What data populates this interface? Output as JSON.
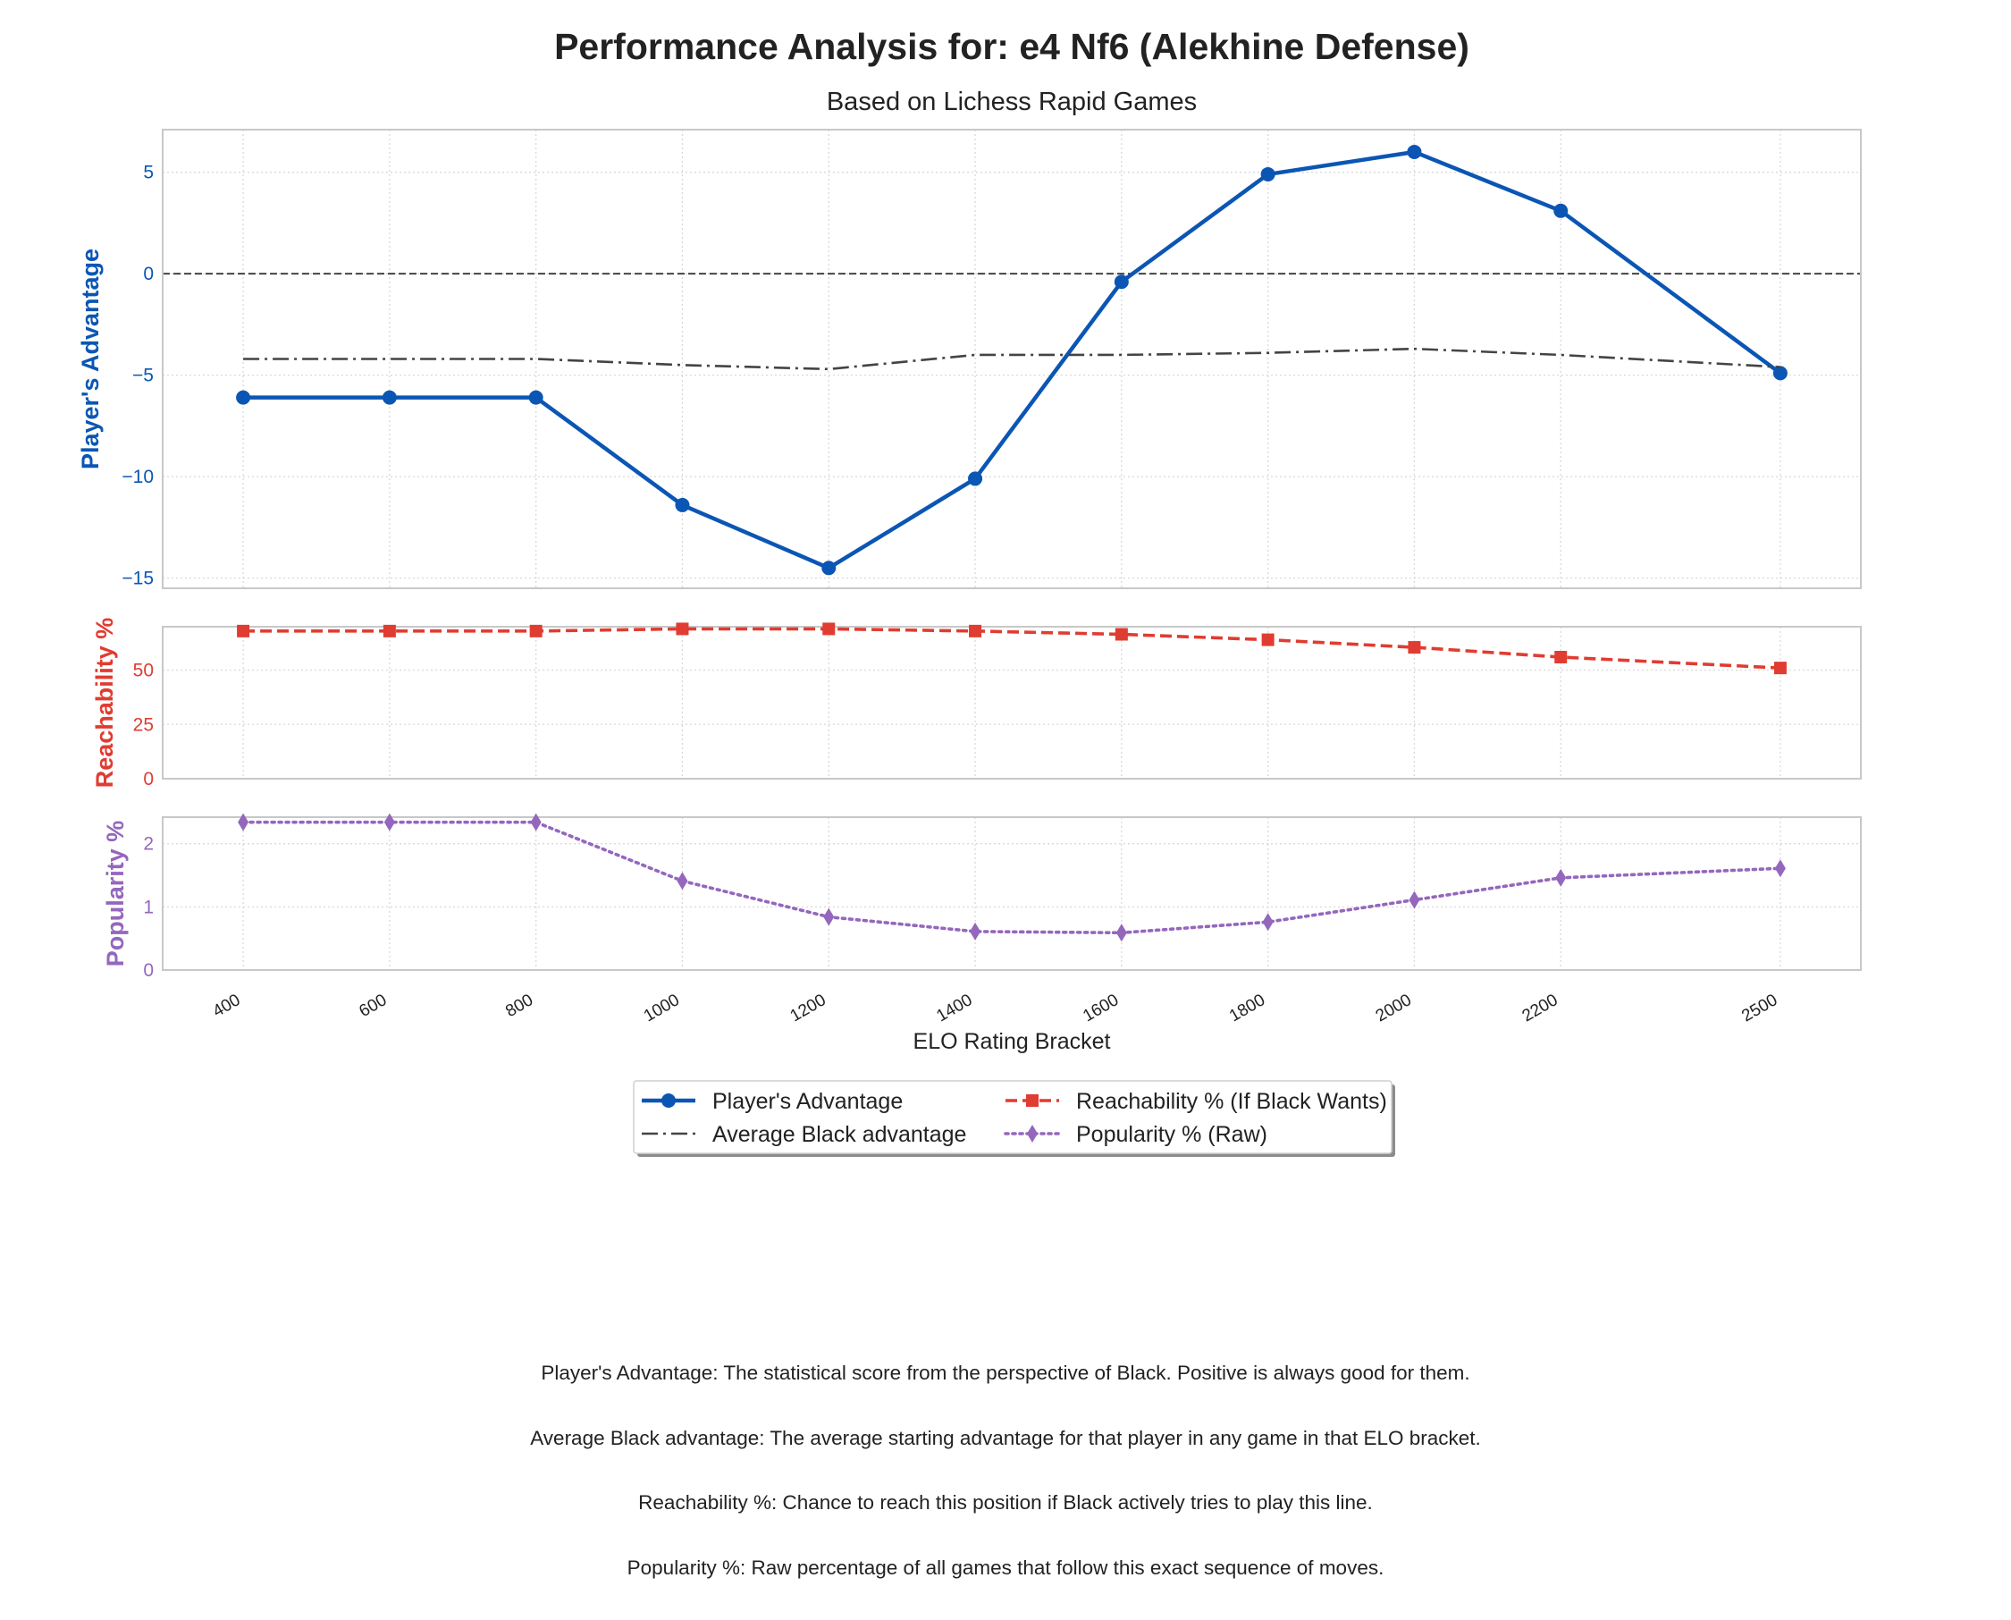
{
  "chart_data": {
    "type": "line",
    "title": "Performance Analysis for: e4 Nf6 (Alekhine Defense)",
    "subtitle": "Based on Lichess Rapid Games",
    "xlabel": "ELO Rating Bracket",
    "x": [
      400,
      600,
      800,
      1000,
      1200,
      1400,
      1600,
      1800,
      2000,
      2200,
      2500
    ],
    "xlim": [
      290,
      2610
    ],
    "grid": true,
    "legend_placement": "bottom-center",
    "panels": [
      {
        "ylabel": "Player's Advantage",
        "ylabel_color": "#0b56b4",
        "ylim": [
          -15.5,
          7.1
        ],
        "yticks": [
          5,
          0,
          -5,
          -10,
          -15
        ],
        "ytick_labels": [
          "5",
          "0",
          "−5",
          "−10",
          "−15"
        ],
        "zero_line": true,
        "series": [
          {
            "name": "Player's Advantage",
            "color": "#0b56b4",
            "style": "solid",
            "marker": "circle",
            "values": [
              -6.1,
              -6.1,
              -6.1,
              -11.4,
              -14.5,
              -10.1,
              -0.4,
              4.9,
              6.0,
              3.1,
              -4.9
            ]
          },
          {
            "name": "Average Black advantage",
            "color": "#444444",
            "style": "dashdot",
            "marker": "none",
            "values": [
              -4.2,
              -4.2,
              -4.2,
              -4.5,
              -4.7,
              -4.0,
              -4.0,
              -3.9,
              -3.7,
              -4.0,
              -4.6
            ]
          }
        ]
      },
      {
        "ylabel": "Reachability %",
        "ylabel_color": "#e03c31",
        "ylim": [
          0,
          70
        ],
        "yticks": [
          50,
          25,
          0
        ],
        "ytick_labels": [
          "50",
          "25",
          "0"
        ],
        "series": [
          {
            "name": "Reachability % (If Black Wants)",
            "color": "#e03c31",
            "style": "dashed",
            "marker": "square",
            "values": [
              68,
              68,
              68,
              69,
              69,
              68,
              66.5,
              64,
              60.5,
              56,
              51
            ]
          }
        ]
      },
      {
        "ylabel": "Popularity %",
        "ylabel_color": "#9467bd",
        "ylim": [
          0,
          2.42
        ],
        "yticks": [
          2,
          1,
          0
        ],
        "ytick_labels": [
          "2",
          "1",
          "0"
        ],
        "series": [
          {
            "name": "Popularity % (Raw)",
            "color": "#9467bd",
            "style": "dotted",
            "marker": "diamond",
            "values": [
              2.34,
              2.34,
              2.34,
              1.41,
              0.84,
              0.61,
              0.59,
              0.76,
              1.11,
              1.46,
              1.61
            ]
          }
        ]
      }
    ],
    "legend": [
      {
        "label": "Player's Advantage"
      },
      {
        "label": "Reachability % (If Black Wants)"
      },
      {
        "label": "Average Black advantage"
      },
      {
        "label": "Popularity % (Raw)"
      }
    ]
  },
  "notes": [
    "Player's Advantage: The statistical score from the perspective of Black. Positive is always good for them.",
    "Average Black advantage: The average starting advantage for that player in any game in that ELO bracket.",
    "Reachability %: Chance to reach this position if Black actively tries to play this line.",
    "Popularity %: Raw percentage of all games that follow this exact sequence of moves."
  ]
}
